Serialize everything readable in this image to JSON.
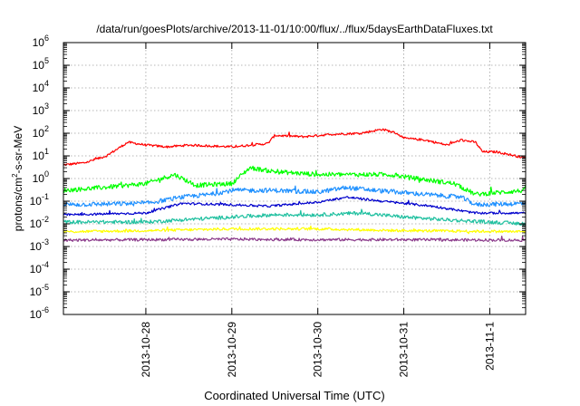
{
  "chart_data": {
    "type": "line",
    "title": "/data/run/goesPlots/archive/2013-11-01/10:00/flux/../flux/5daysEarthDataFluxes.txt",
    "xlabel": "Coordinated Universal Time (UTC)",
    "ylabel_parts": [
      "protons/cm",
      "2",
      "-s-sr-MeV"
    ],
    "yscale": "log",
    "ylim_exp": [
      -6,
      6
    ],
    "xlim": [
      "2013-10-27 01:00",
      "2013-11-01 10:00"
    ],
    "grid": true,
    "legend": "none",
    "y_ticks": [
      {
        "exp": -6,
        "base": "10",
        "sup": "-6"
      },
      {
        "exp": -5,
        "base": "10",
        "sup": "-5"
      },
      {
        "exp": -4,
        "base": "10",
        "sup": "-4"
      },
      {
        "exp": -3,
        "base": "10",
        "sup": "-3"
      },
      {
        "exp": -2,
        "base": "10",
        "sup": "-2"
      },
      {
        "exp": -1,
        "base": "10",
        "sup": "-1"
      },
      {
        "exp": 0,
        "base": "10",
        "sup": "0"
      },
      {
        "exp": 1,
        "base": "10",
        "sup": "1"
      },
      {
        "exp": 2,
        "base": "10",
        "sup": "2"
      },
      {
        "exp": 3,
        "base": "10",
        "sup": "3"
      },
      {
        "exp": 4,
        "base": "10",
        "sup": "4"
      },
      {
        "exp": 5,
        "base": "10",
        "sup": "5"
      },
      {
        "exp": 6,
        "base": "10",
        "sup": "6"
      }
    ],
    "x_ticks": [
      {
        "date": "2013-10-28 00:00",
        "label": "2013-10-28"
      },
      {
        "date": "2013-10-29 00:00",
        "label": "2013-10-29"
      },
      {
        "date": "2013-10-30 00:00",
        "label": "2013-10-30"
      },
      {
        "date": "2013-10-31 00:00",
        "label": "2013-10-31"
      },
      {
        "date": "2013-11-01 00:00",
        "label": "2013-11-1"
      }
    ],
    "series": [
      {
        "color": "#ff0000",
        "noise": 0.05,
        "points": [
          [
            "2013-10-27 01:00",
            4
          ],
          [
            "2013-10-27 07:00",
            5
          ],
          [
            "2013-10-27 13:00",
            10
          ],
          [
            "2013-10-27 19:00",
            40
          ],
          [
            "2013-10-28 00:00",
            30
          ],
          [
            "2013-10-28 06:00",
            25
          ],
          [
            "2013-10-28 12:00",
            30
          ],
          [
            "2013-10-29 00:00",
            25
          ],
          [
            "2013-10-29 10:00",
            35
          ],
          [
            "2013-10-29 12:00",
            80
          ],
          [
            "2013-10-29 20:00",
            70
          ],
          [
            "2013-10-30 04:00",
            90
          ],
          [
            "2013-10-30 12:00",
            100
          ],
          [
            "2013-10-30 18:00",
            150
          ],
          [
            "2013-10-30 22:00",
            100
          ],
          [
            "2013-10-31 00:00",
            60
          ],
          [
            "2013-10-31 06:00",
            50
          ],
          [
            "2013-10-31 12:00",
            30
          ],
          [
            "2013-10-31 16:00",
            50
          ],
          [
            "2013-10-31 20:00",
            40
          ],
          [
            "2013-10-31 22:00",
            15
          ],
          [
            "2013-11-01 02:00",
            15
          ],
          [
            "2013-11-01 10:00",
            8
          ]
        ]
      },
      {
        "color": "#00ff00",
        "noise": 0.1,
        "points": [
          [
            "2013-10-27 01:00",
            0.3
          ],
          [
            "2013-10-27 12:00",
            0.4
          ],
          [
            "2013-10-28 00:00",
            0.6
          ],
          [
            "2013-10-28 08:00",
            1.5
          ],
          [
            "2013-10-28 14:00",
            0.5
          ],
          [
            "2013-10-29 00:00",
            0.6
          ],
          [
            "2013-10-29 05:00",
            3
          ],
          [
            "2013-10-29 12:00",
            2
          ],
          [
            "2013-10-30 00:00",
            1.5
          ],
          [
            "2013-10-30 12:00",
            1.5
          ],
          [
            "2013-10-30 20:00",
            1.5
          ],
          [
            "2013-10-31 08:00",
            0.8
          ],
          [
            "2013-10-31 14:00",
            0.6
          ],
          [
            "2013-10-31 20:00",
            0.2
          ],
          [
            "2013-11-01 10:00",
            0.3
          ]
        ]
      },
      {
        "color": "#1e90ff",
        "noise": 0.1,
        "points": [
          [
            "2013-10-27 01:00",
            0.07
          ],
          [
            "2013-10-28 00:00",
            0.08
          ],
          [
            "2013-10-28 10:00",
            0.15
          ],
          [
            "2013-10-28 18:00",
            0.2
          ],
          [
            "2013-10-29 00:00",
            0.3
          ],
          [
            "2013-10-29 12:00",
            0.3
          ],
          [
            "2013-10-30 00:00",
            0.25
          ],
          [
            "2013-10-30 08:00",
            0.4
          ],
          [
            "2013-10-30 16:00",
            0.3
          ],
          [
            "2013-10-31 06:00",
            0.2
          ],
          [
            "2013-10-31 16:00",
            0.15
          ],
          [
            "2013-10-31 20:00",
            0.07
          ],
          [
            "2013-11-01 10:00",
            0.08
          ]
        ]
      },
      {
        "color": "#0000cc",
        "noise": 0.05,
        "points": [
          [
            "2013-10-27 01:00",
            0.025
          ],
          [
            "2013-10-28 00:00",
            0.03
          ],
          [
            "2013-10-28 10:00",
            0.08
          ],
          [
            "2013-10-29 00:00",
            0.07
          ],
          [
            "2013-10-29 10:00",
            0.06
          ],
          [
            "2013-10-30 00:00",
            0.09
          ],
          [
            "2013-10-30 08:00",
            0.15
          ],
          [
            "2013-10-30 18:00",
            0.1
          ],
          [
            "2013-10-31 08:00",
            0.06
          ],
          [
            "2013-10-31 20:00",
            0.03
          ],
          [
            "2013-11-01 10:00",
            0.03
          ]
        ]
      },
      {
        "color": "#20c0a0",
        "noise": 0.08,
        "points": [
          [
            "2013-10-27 01:00",
            0.012
          ],
          [
            "2013-10-28 00:00",
            0.012
          ],
          [
            "2013-10-28 10:00",
            0.015
          ],
          [
            "2013-10-29 00:00",
            0.02
          ],
          [
            "2013-10-29 12:00",
            0.025
          ],
          [
            "2013-10-30 00:00",
            0.025
          ],
          [
            "2013-10-30 12:00",
            0.03
          ],
          [
            "2013-10-31 00:00",
            0.02
          ],
          [
            "2013-10-31 12:00",
            0.015
          ],
          [
            "2013-11-01 10:00",
            0.01
          ]
        ]
      },
      {
        "color": "#ffff00",
        "noise": 0.06,
        "points": [
          [
            "2013-10-27 01:00",
            0.0045
          ],
          [
            "2013-10-28 00:00",
            0.005
          ],
          [
            "2013-10-29 00:00",
            0.006
          ],
          [
            "2013-10-30 00:00",
            0.006
          ],
          [
            "2013-10-31 00:00",
            0.005
          ],
          [
            "2013-11-01 10:00",
            0.0045
          ]
        ]
      },
      {
        "color": "#8b3a8b",
        "noise": 0.06,
        "points": [
          [
            "2013-10-27 01:00",
            0.0019
          ],
          [
            "2013-10-28 00:00",
            0.002
          ],
          [
            "2013-10-29 00:00",
            0.0021
          ],
          [
            "2013-10-30 00:00",
            0.002
          ],
          [
            "2013-10-31 00:00",
            0.002
          ],
          [
            "2013-11-01 10:00",
            0.0019
          ]
        ]
      }
    ]
  }
}
